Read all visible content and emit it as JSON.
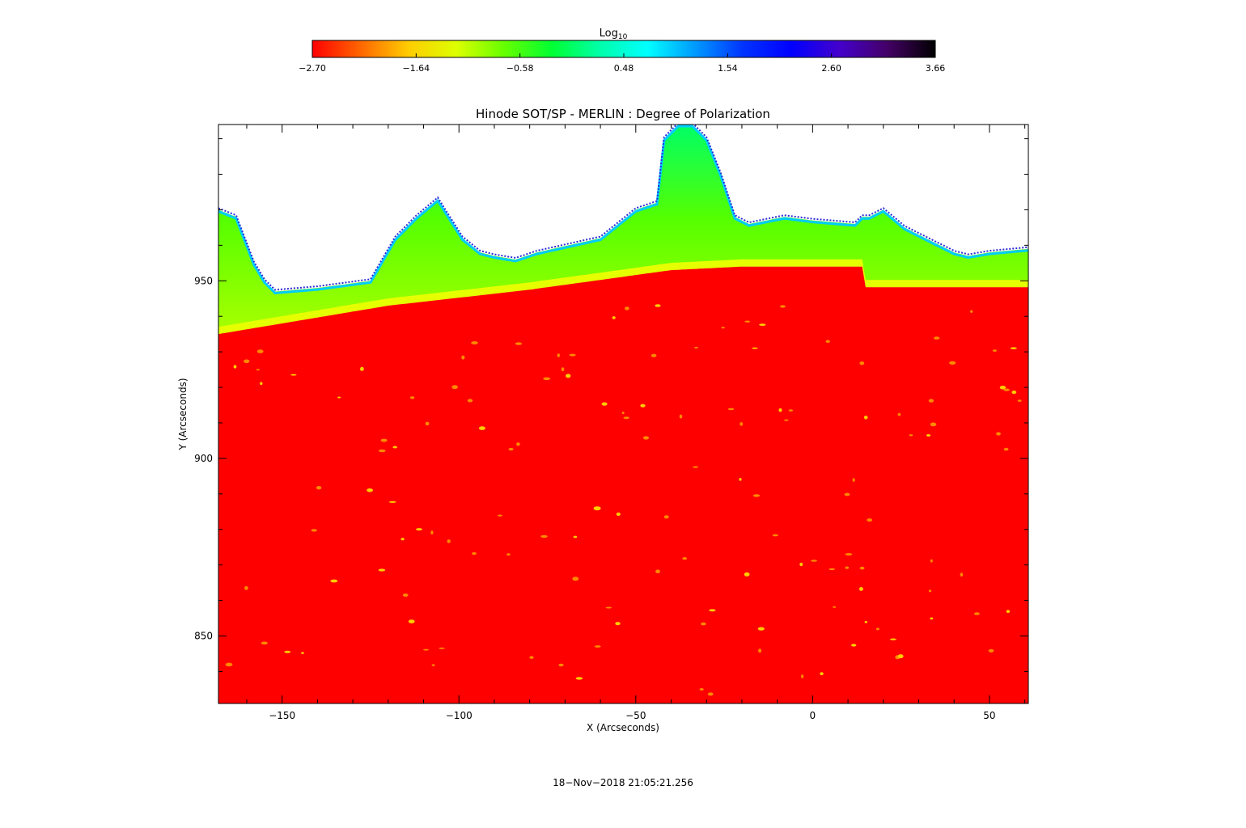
{
  "chart_data": {
    "type": "heatmap",
    "title": "Hinode SOT/SP - MERLIN : Degree of Polarization",
    "xlabel": "X (Arcseconds)",
    "ylabel": "Y (Arcseconds)",
    "xlim": [
      -168,
      61
    ],
    "ylim": [
      831,
      994
    ],
    "x_ticks": [
      -150,
      -100,
      -50,
      0,
      50
    ],
    "y_ticks": [
      850,
      900,
      950
    ],
    "x_tick_labels": [
      "−150",
      "−100",
      "−50",
      "0",
      "50"
    ],
    "y_tick_labels": [
      "850",
      "900",
      "950"
    ],
    "colorbar": {
      "label": "Log",
      "label_subscript": "10",
      "range": [
        -2.7,
        3.66
      ],
      "ticks": [
        -2.7,
        -1.64,
        -0.58,
        0.48,
        1.54,
        2.6,
        3.66
      ],
      "tick_labels": [
        "−2.70",
        "−1.64",
        "−0.58",
        "0.48",
        "1.54",
        "2.60",
        "3.66"
      ],
      "colormap": [
        "#ff0000",
        "#ff6600",
        "#ffcc00",
        "#ddff00",
        "#66ff00",
        "#00ff33",
        "#00ffaa",
        "#00ffff",
        "#0099ff",
        "#0033ff",
        "#0000ff",
        "#4400cc",
        "#440066",
        "#000000"
      ]
    },
    "limb_profile": {
      "x": [
        -168,
        -120,
        -80,
        -40,
        -20,
        15,
        61
      ],
      "y": [
        935,
        943,
        947.5,
        953,
        954,
        954,
        948
      ]
    },
    "off_limb_top_profile": {
      "x": [
        -168,
        -163,
        -158,
        -155,
        -152,
        -140,
        -125,
        -118,
        -112,
        -106,
        -99,
        -94,
        -90,
        -84,
        -78,
        -60,
        -50,
        -44,
        -42,
        -38,
        -34,
        -30,
        -26,
        -22,
        -18,
        -8,
        0,
        12,
        14,
        16,
        20,
        26,
        32,
        40,
        44,
        50,
        61
      ],
      "y": [
        970,
        968,
        955,
        950,
        947,
        948,
        950,
        962,
        968,
        973,
        962,
        958,
        957,
        956,
        958,
        962,
        970,
        972,
        990,
        994,
        994,
        990,
        980,
        968,
        966,
        968,
        967,
        966,
        968,
        968,
        970,
        965,
        962,
        958,
        957,
        958,
        959
      ]
    },
    "colors": {
      "disk": "#ff0000",
      "limb": "#e6ff00",
      "offlimb_low": "#aaff00",
      "offlimb_high": "#22ff44",
      "edge": "#00ddff",
      "noise": "#2222dd",
      "bright_points": "#ffaa00"
    },
    "grid": false,
    "legend": "none"
  },
  "footer": {
    "timestamp": "18−Nov−2018 21:05:21.256"
  }
}
